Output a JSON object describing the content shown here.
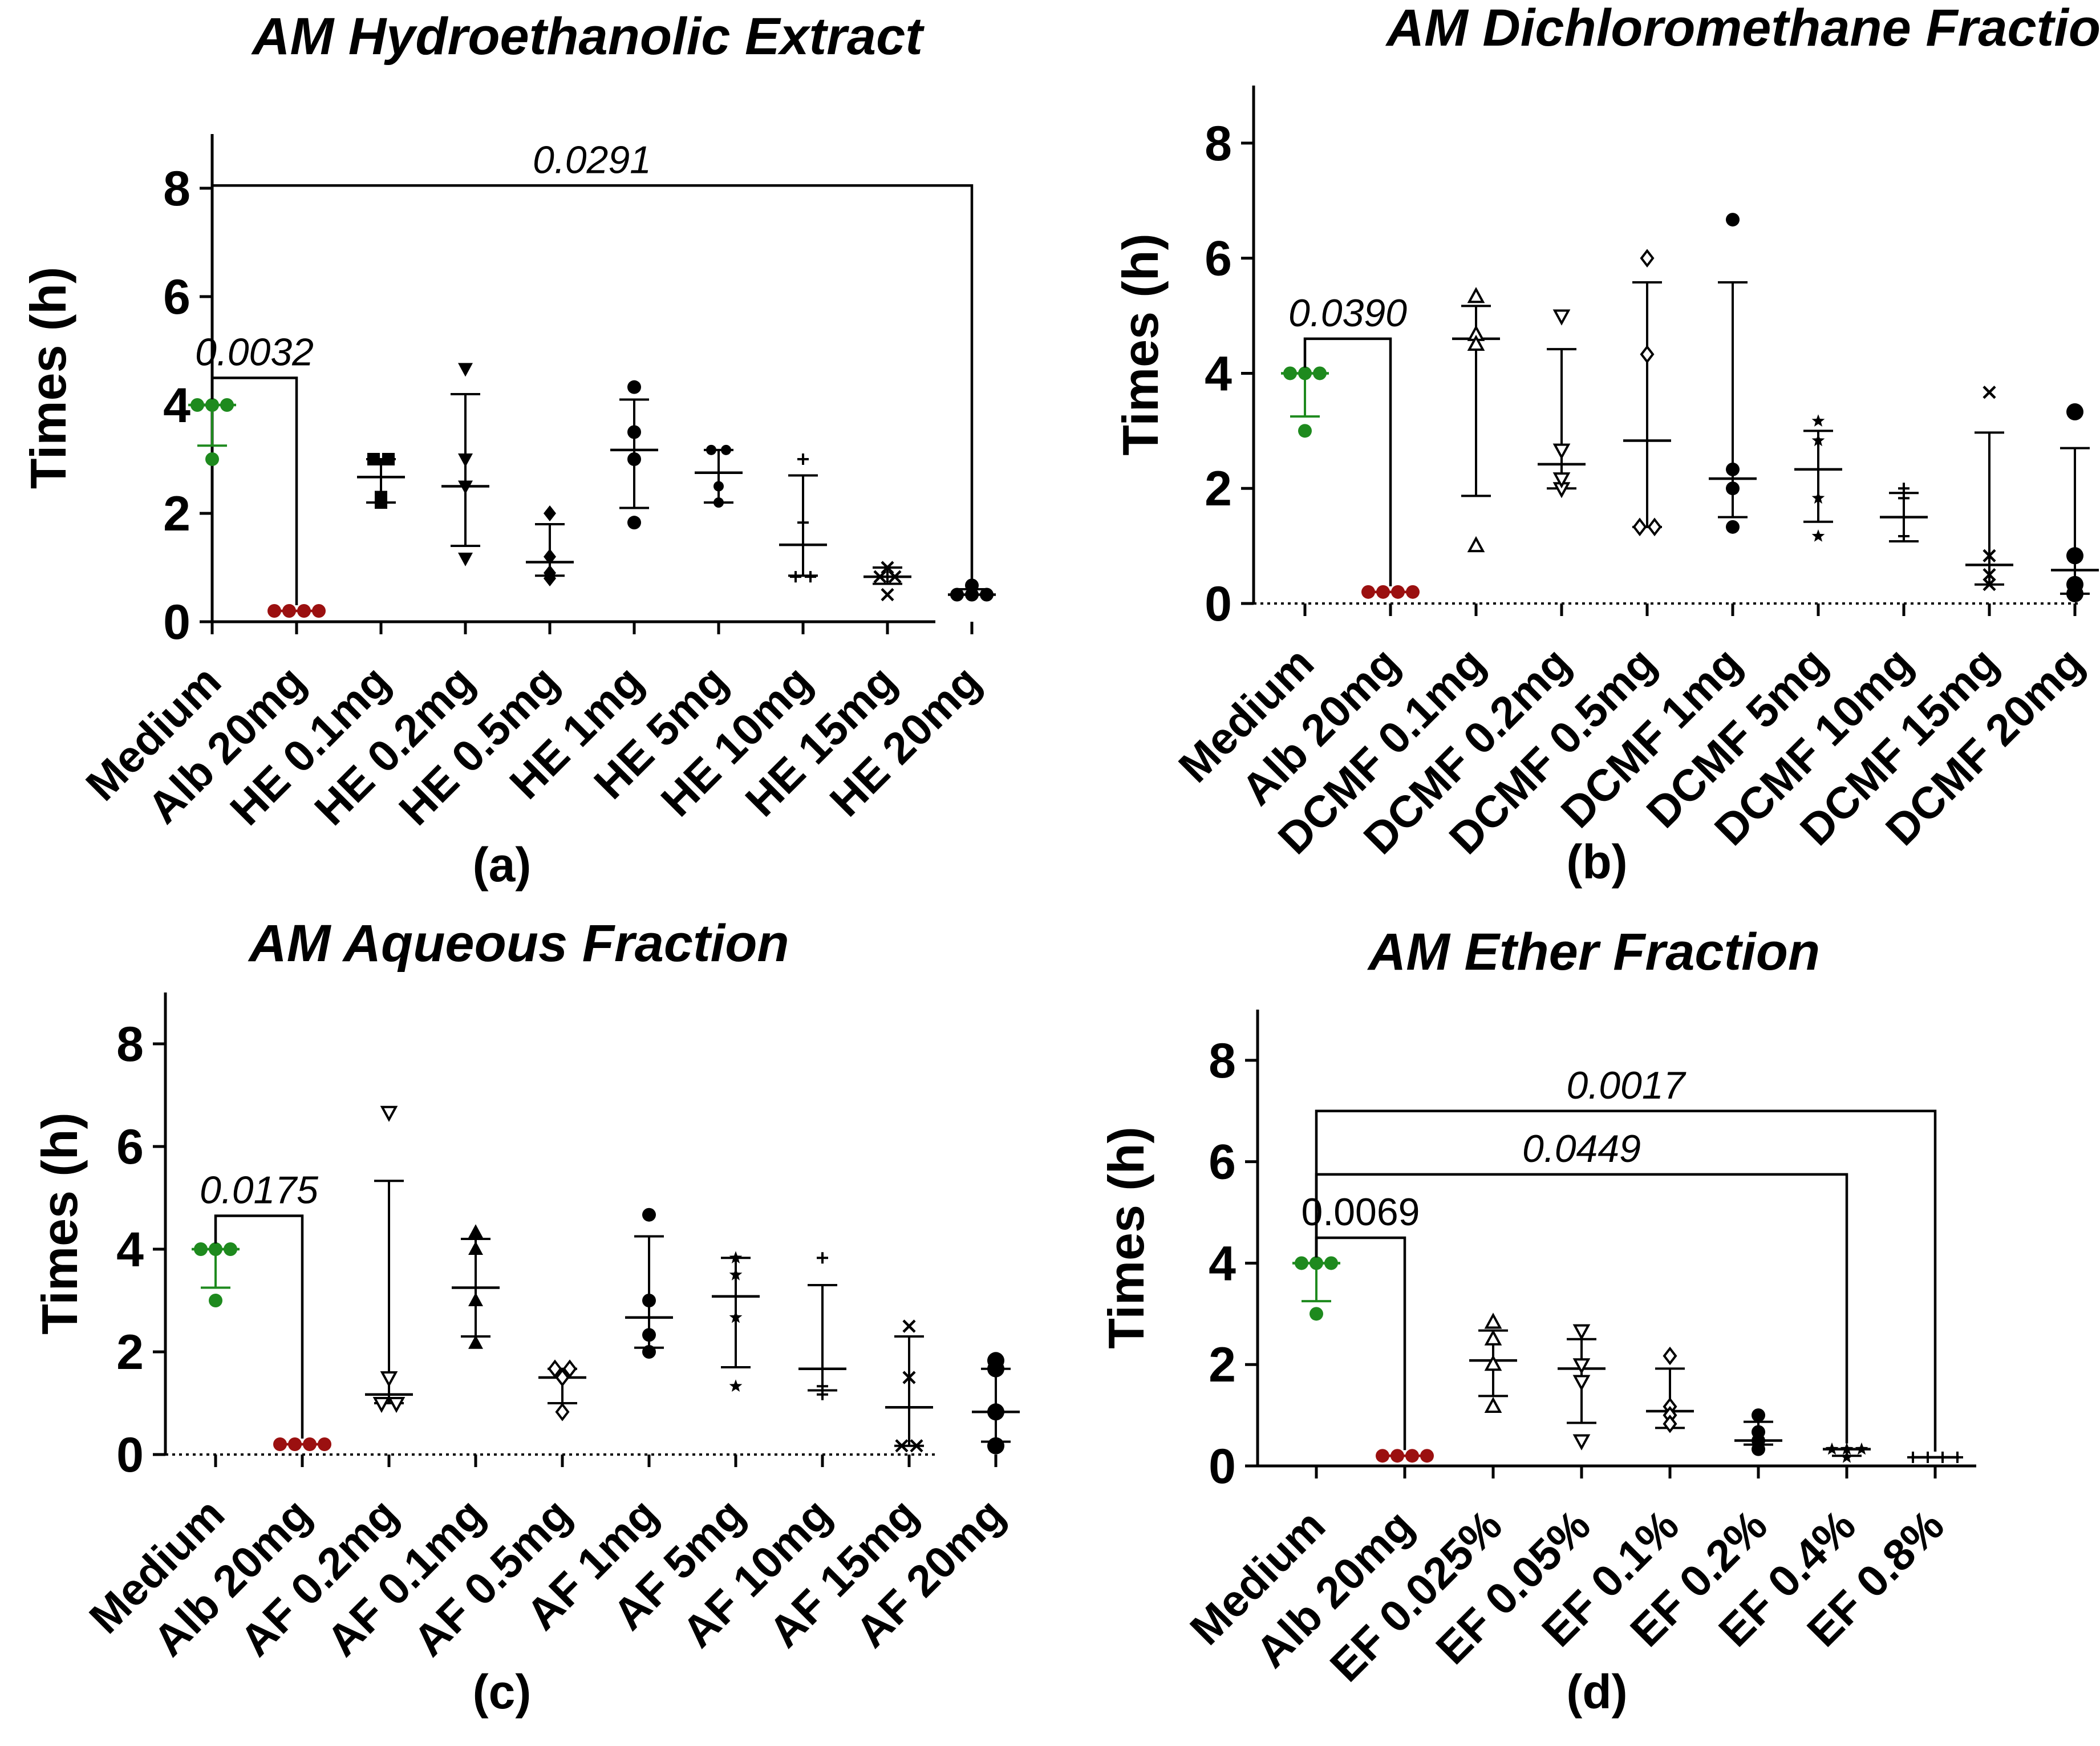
{
  "colors": {
    "medium": "#1e8a1e",
    "alb": "#9b1010",
    "default": "#000000"
  },
  "chart_data": [
    {
      "type": "scatter",
      "title": "AM Hydroethanolic Extract",
      "panel_label": "(a)",
      "ylabel": "Times (h)",
      "ylim": [
        0,
        9
      ],
      "yticks": [
        "0",
        "2",
        "4",
        "6",
        "8"
      ],
      "dotted_baseline": false,
      "categories": [
        "Medium",
        "Alb 20mg",
        "HE 0.1mg",
        "HE 0.2mg",
        "HE 0.5mg",
        "HE 1mg",
        "HE 5mg",
        "HE 10mg",
        "HE 15mg",
        "HE 20mg"
      ],
      "series": [
        {
          "name": "Medium",
          "marker": "circle",
          "color": "medium",
          "points": [
            4.0,
            4.0,
            4.0,
            3.0
          ],
          "median": 4.0,
          "err": [
            3.25,
            4.0
          ]
        },
        {
          "name": "Alb 20mg",
          "marker": "circle",
          "color": "alb",
          "points": [
            0.2,
            0.2,
            0.2,
            0.2
          ],
          "median": 0.2,
          "err": [
            0.2,
            0.2
          ]
        },
        {
          "name": "HE 0.1mg",
          "marker": "square",
          "color": "default",
          "points": [
            3.0,
            2.2,
            2.3,
            3.0
          ],
          "median": 2.67,
          "err": [
            2.2,
            3.0
          ]
        },
        {
          "name": "HE 0.2mg",
          "marker": "triangle-down",
          "color": "default",
          "points": [
            4.67,
            3.0,
            1.17,
            2.5
          ],
          "median": 2.5,
          "err": [
            1.4,
            4.2
          ]
        },
        {
          "name": "HE 0.5mg",
          "marker": "diamond",
          "color": "default",
          "points": [
            2.0,
            1.2,
            0.9,
            0.8
          ],
          "median": 1.1,
          "err": [
            0.85,
            1.8
          ]
        },
        {
          "name": "HE 1mg",
          "marker": "circle",
          "color": "default",
          "points": [
            4.33,
            3.5,
            3.0,
            1.83
          ],
          "median": 3.17,
          "err": [
            2.1,
            4.1
          ]
        },
        {
          "name": "HE 5mg",
          "marker": "circle-small",
          "color": "default",
          "points": [
            3.17,
            2.5,
            2.2,
            3.17
          ],
          "median": 2.75,
          "err": [
            2.2,
            3.17
          ]
        },
        {
          "name": "HE 10mg",
          "marker": "plus",
          "color": "default",
          "points": [
            3.0,
            1.83,
            0.83,
            0.83
          ],
          "median": 1.42,
          "err": [
            0.85,
            2.7
          ]
        },
        {
          "name": "HE 15mg",
          "marker": "cross",
          "color": "default",
          "points": [
            1.0,
            0.83,
            0.83,
            0.5
          ],
          "median": 0.83,
          "err": [
            0.7,
            1.0
          ]
        },
        {
          "name": "HE 20mg",
          "marker": "circle",
          "color": "default",
          "points": [
            0.67,
            0.5,
            0.5,
            0.5
          ],
          "median": 0.5,
          "err": [
            0.5,
            0.6
          ]
        }
      ],
      "brackets": [
        {
          "from": 0,
          "to": 1,
          "y": 4.5,
          "label": "0.0032",
          "italic": true
        },
        {
          "from": 0,
          "to": 9,
          "y": 8.05,
          "label": "0.0291",
          "italic": true
        }
      ]
    },
    {
      "type": "scatter",
      "title": "AM Dichloromethane Fraction",
      "panel_label": "(b)",
      "ylabel": "Times (h)",
      "ylim": [
        0,
        9
      ],
      "yticks": [
        "0",
        "2",
        "4",
        "6",
        "8"
      ],
      "dotted_baseline": true,
      "categories": [
        "Medium",
        "Alb 20mg",
        "DCMF 0.1mg",
        "DCMF 0.2mg",
        "DCMF 0.5mg",
        "DCMF 1mg",
        "DCMF 5mg",
        "DCMF 10mg",
        "DCMF 15mg",
        "DCMF 20mg"
      ],
      "series": [
        {
          "name": "Medium",
          "marker": "circle",
          "color": "medium",
          "points": [
            4.0,
            4.0,
            4.0,
            3.0
          ],
          "median": 4.0,
          "err": [
            3.25,
            4.0
          ]
        },
        {
          "name": "Alb 20mg",
          "marker": "circle",
          "color": "alb",
          "points": [
            0.2,
            0.2,
            0.2,
            0.2
          ],
          "median": 0.2,
          "err": [
            0.2,
            0.2
          ]
        },
        {
          "name": "DCMF 0.1mg",
          "marker": "triangle-open",
          "color": "default",
          "points": [
            5.33,
            4.67,
            4.5,
            1.0
          ],
          "median": 4.6,
          "err": [
            1.87,
            5.17
          ]
        },
        {
          "name": "DCMF 0.2mg",
          "marker": "triangle-down-open",
          "color": "default",
          "points": [
            5.0,
            2.67,
            2.0,
            2.17
          ],
          "median": 2.42,
          "err": [
            2.0,
            4.42
          ]
        },
        {
          "name": "DCMF 0.5mg",
          "marker": "diamond-open",
          "color": "default",
          "points": [
            6.0,
            4.33,
            1.33,
            1.33
          ],
          "median": 2.83,
          "err": [
            1.33,
            5.58
          ]
        },
        {
          "name": "DCMF 1mg",
          "marker": "circle",
          "color": "default",
          "points": [
            6.67,
            2.33,
            2.0,
            1.33
          ],
          "median": 2.17,
          "err": [
            1.5,
            5.58
          ]
        },
        {
          "name": "DCMF 5mg",
          "marker": "star",
          "color": "default",
          "points": [
            3.17,
            2.83,
            1.83,
            1.17
          ],
          "median": 2.33,
          "err": [
            1.42,
            3.0
          ]
        },
        {
          "name": "DCMF 10mg",
          "marker": "plus",
          "color": "default",
          "points": [
            2.0,
            1.83,
            1.5,
            1.17
          ],
          "median": 1.5,
          "err": [
            1.08,
            1.92
          ]
        },
        {
          "name": "DCMF 15mg",
          "marker": "cross",
          "color": "default",
          "points": [
            3.67,
            0.83,
            0.5,
            0.33
          ],
          "median": 0.67,
          "err": [
            0.33,
            2.97
          ]
        },
        {
          "name": "DCMF 20mg",
          "marker": "circle-large",
          "color": "default",
          "points": [
            3.33,
            0.83,
            0.33,
            0.17
          ],
          "median": 0.58,
          "err": [
            0.17,
            2.7
          ]
        }
      ],
      "brackets": [
        {
          "from": 0,
          "to": 1,
          "y": 4.6,
          "label": "0.0390",
          "italic": true
        }
      ]
    },
    {
      "type": "scatter",
      "title": "AM Aqueous Fraction",
      "panel_label": "(c)",
      "ylabel": "Times (h)",
      "ylim": [
        0,
        9
      ],
      "yticks": [
        "0",
        "2",
        "4",
        "6",
        "8"
      ],
      "dotted_baseline": true,
      "categories": [
        "Medium",
        "Alb 20mg",
        "AF 0.2mg",
        "AF 0.1mg",
        "AF 0.5mg",
        "AF 1mg",
        "AF 5mg",
        "AF 10mg",
        "AF 15mg",
        "AF 20mg"
      ],
      "series": [
        {
          "name": "Medium",
          "marker": "circle",
          "color": "medium",
          "points": [
            4.0,
            4.0,
            4.0,
            3.0
          ],
          "median": 4.0,
          "err": [
            3.25,
            4.0
          ]
        },
        {
          "name": "Alb 20mg",
          "marker": "circle",
          "color": "alb",
          "points": [
            0.2,
            0.2,
            0.2,
            0.2
          ],
          "median": 0.2,
          "err": [
            0.2,
            0.2
          ]
        },
        {
          "name": "AF 0.2mg",
          "marker": "triangle-down-open",
          "color": "default",
          "points": [
            6.67,
            1.5,
            1.0,
            1.0
          ],
          "median": 1.17,
          "err": [
            1.0,
            5.33
          ]
        },
        {
          "name": "AF 0.1mg",
          "marker": "triangle",
          "color": "default",
          "points": [
            4.33,
            4.0,
            3.0,
            2.17
          ],
          "median": 3.25,
          "err": [
            2.3,
            4.2
          ]
        },
        {
          "name": "AF 0.5mg",
          "marker": "diamond-open",
          "color": "default",
          "points": [
            1.67,
            1.67,
            1.5,
            0.83
          ],
          "median": 1.5,
          "err": [
            1.0,
            1.67
          ]
        },
        {
          "name": "AF 1mg",
          "marker": "circle",
          "color": "default",
          "points": [
            4.67,
            3.0,
            2.33,
            2.0
          ],
          "median": 2.67,
          "err": [
            2.08,
            4.25
          ]
        },
        {
          "name": "AF 5mg",
          "marker": "star",
          "color": "default",
          "points": [
            3.83,
            3.5,
            2.67,
            1.33
          ],
          "median": 3.08,
          "err": [
            1.7,
            3.83
          ]
        },
        {
          "name": "AF 10mg",
          "marker": "plus",
          "color": "default",
          "points": [
            3.83,
            1.67,
            1.33,
            1.17
          ],
          "median": 1.67,
          "err": [
            1.25,
            3.3
          ]
        },
        {
          "name": "AF 15mg",
          "marker": "cross",
          "color": "default",
          "points": [
            2.5,
            1.5,
            0.17,
            0.17
          ],
          "median": 0.92,
          "err": [
            0.17,
            2.3
          ]
        },
        {
          "name": "AF 20mg",
          "marker": "circle-large",
          "color": "default",
          "points": [
            1.83,
            1.67,
            0.83,
            0.17
          ],
          "median": 0.83,
          "err": [
            0.25,
            1.67
          ]
        }
      ],
      "brackets": [
        {
          "from": 0,
          "to": 1,
          "y": 4.65,
          "label": "0.0175",
          "italic": true
        }
      ]
    },
    {
      "type": "scatter",
      "title": "AM Ether Fraction",
      "panel_label": "(d)",
      "ylabel": "Times (h)",
      "ylim": [
        0,
        9
      ],
      "yticks": [
        "0",
        "2",
        "4",
        "6",
        "8"
      ],
      "dotted_baseline": false,
      "categories": [
        "Medium",
        "Alb 20mg",
        "EF 0.025%",
        "EF 0.05%",
        "EF 0.1%",
        "EF 0.2%",
        "EF 0.4%",
        "EF 0.8%"
      ],
      "series": [
        {
          "name": "Medium",
          "marker": "circle",
          "color": "medium",
          "points": [
            4.0,
            4.0,
            4.0,
            3.0
          ],
          "median": 4.0,
          "err": [
            3.25,
            4.0
          ]
        },
        {
          "name": "Alb 20mg",
          "marker": "circle",
          "color": "alb",
          "points": [
            0.2,
            0.2,
            0.2,
            0.2
          ],
          "median": 0.2,
          "err": [
            0.2,
            0.2
          ]
        },
        {
          "name": "EF 0.025%",
          "marker": "triangle-open",
          "color": "default",
          "points": [
            2.83,
            2.5,
            2.0,
            1.17
          ],
          "median": 2.08,
          "err": [
            1.38,
            2.67
          ]
        },
        {
          "name": "EF 0.05%",
          "marker": "triangle-down-open",
          "color": "default",
          "points": [
            2.67,
            2.0,
            1.67,
            0.5
          ],
          "median": 1.92,
          "err": [
            0.85,
            2.5
          ]
        },
        {
          "name": "EF 0.1%",
          "marker": "diamond-open",
          "color": "default",
          "points": [
            2.17,
            1.17,
            1.0,
            0.83
          ],
          "median": 1.08,
          "err": [
            0.75,
            1.92
          ]
        },
        {
          "name": "EF 0.2%",
          "marker": "circle",
          "color": "default",
          "points": [
            1.0,
            0.67,
            0.5,
            0.33
          ],
          "median": 0.5,
          "err": [
            0.42,
            0.87
          ]
        },
        {
          "name": "EF 0.4%",
          "marker": "star",
          "color": "default",
          "points": [
            0.33,
            0.33,
            0.33,
            0.17
          ],
          "median": 0.33,
          "err": [
            0.2,
            0.33
          ]
        },
        {
          "name": "EF 0.8%",
          "marker": "plus",
          "color": "default",
          "points": [
            0.17,
            0.17,
            0.17,
            0.17
          ],
          "median": 0.17,
          "err": [
            0.17,
            0.17
          ]
        }
      ],
      "brackets": [
        {
          "from": 0,
          "to": 1,
          "y": 4.5,
          "label": "0.0069",
          "italic": false
        },
        {
          "from": 0,
          "to": 6,
          "y": 5.75,
          "label": "0.0449",
          "italic": true
        },
        {
          "from": 0,
          "to": 7,
          "y": 7.0,
          "label": "0.0017",
          "italic": true
        }
      ]
    }
  ]
}
